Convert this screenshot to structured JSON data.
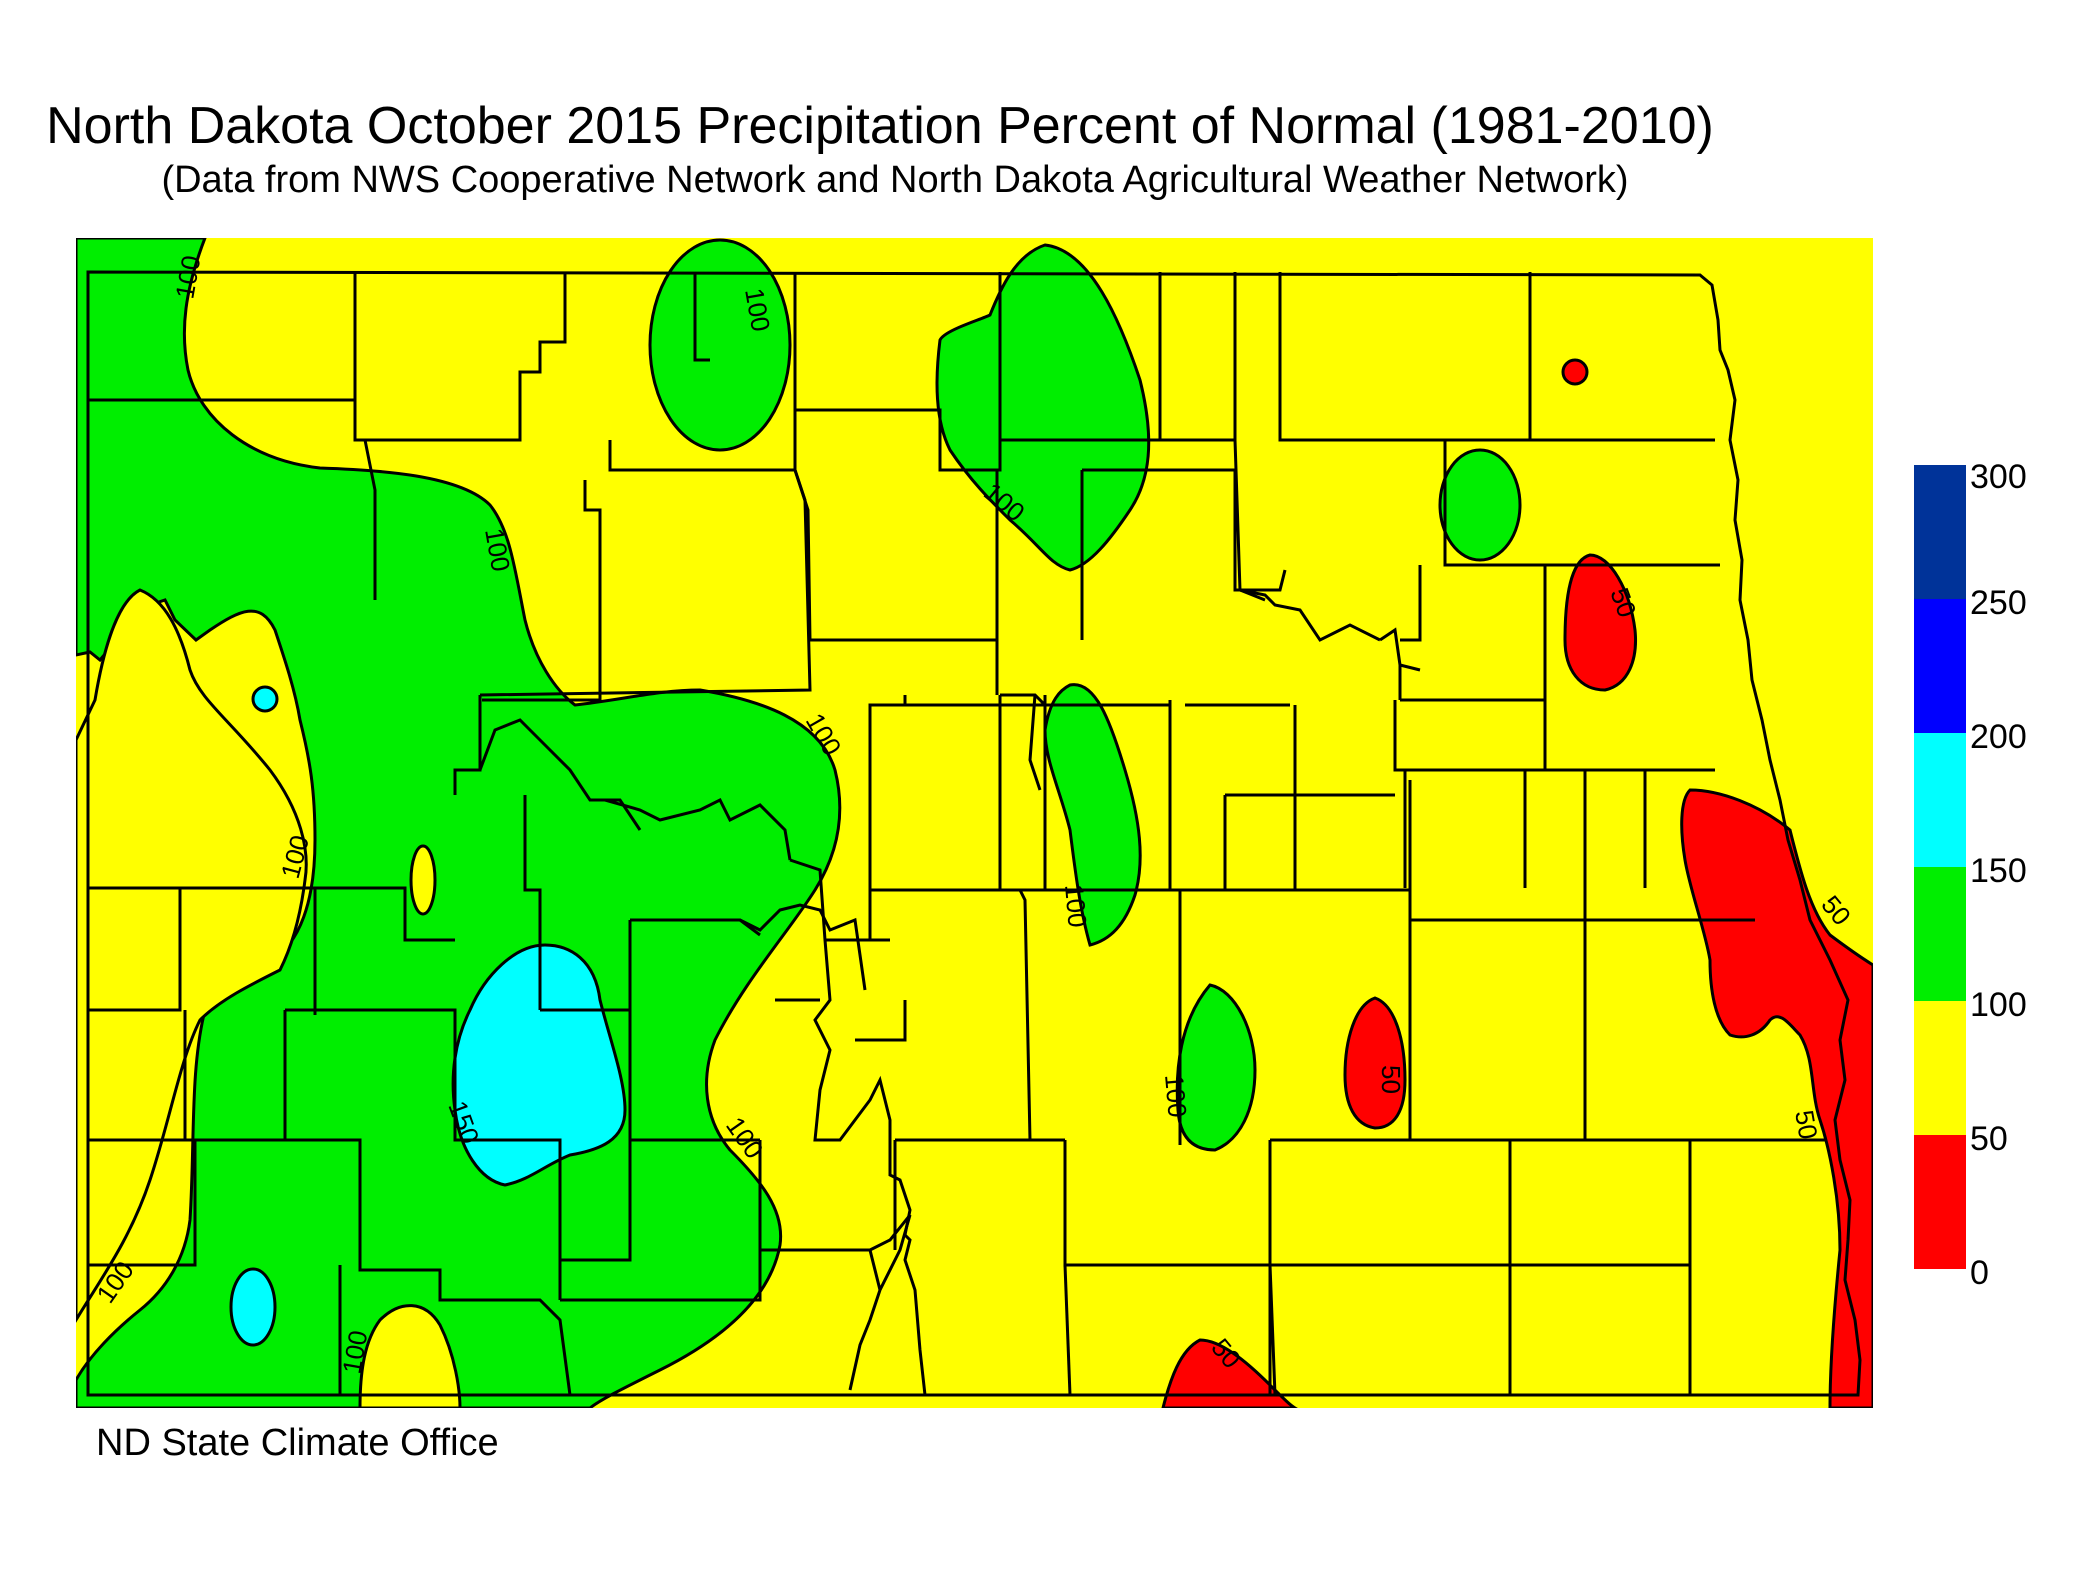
{
  "title": "North Dakota October 2015 Precipitation Percent of Normal (1981-2010)",
  "subtitle": "(Data from NWS Cooperative Network and North Dakota Agricultural Weather Network)",
  "credit": "ND State Climate Office",
  "legend": {
    "ticks": [
      "300",
      "250",
      "200",
      "150",
      "100",
      "50",
      "0"
    ],
    "bins": [
      {
        "range": "250-300",
        "color": "#003399"
      },
      {
        "range": "200-250",
        "color": "#0000ff"
      },
      {
        "range": "150-200",
        "color": "#00ffff"
      },
      {
        "range": "100-150",
        "color": "#00ee00"
      },
      {
        "range": "50-100",
        "color": "#ffff00"
      },
      {
        "range": "0-50",
        "color": "#ff0000"
      }
    ]
  },
  "contour_labels": {
    "l1": "100",
    "l2": "100",
    "l3": "100",
    "l4": "100",
    "l5": "100",
    "l6": "100",
    "l7": "100",
    "l8": "100",
    "l9": "100",
    "l10": "100",
    "l11": "100",
    "l12": "150",
    "l13": "50",
    "l14": "50",
    "l15": "50",
    "l16": "50",
    "l17": "50"
  }
}
